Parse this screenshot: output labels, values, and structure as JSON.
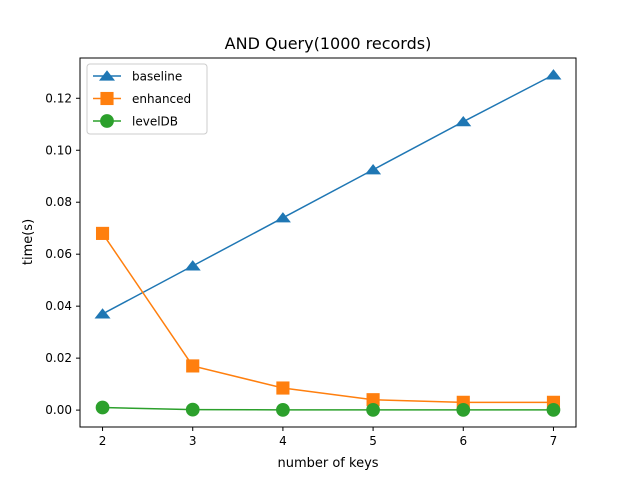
{
  "chart_data": {
    "type": "line",
    "title": "AND Query(1000 records)",
    "xlabel": "number of keys",
    "ylabel": "time(s)",
    "x": [
      2,
      3,
      4,
      5,
      6,
      7
    ],
    "xlim": [
      1.75,
      7.25
    ],
    "ylim": [
      -0.0065,
      0.1355
    ],
    "xticks": [
      2,
      3,
      4,
      5,
      6,
      7
    ],
    "yticks": [
      0.0,
      0.02,
      0.04,
      0.06,
      0.08,
      0.1,
      0.12
    ],
    "ytick_labels": [
      "0.00",
      "0.02",
      "0.04",
      "0.06",
      "0.08",
      "0.10",
      "0.12"
    ],
    "grid": false,
    "legend_position": "top-left",
    "series": [
      {
        "name": "baseline",
        "values": [
          0.037,
          0.0555,
          0.074,
          0.0925,
          0.111,
          0.129
        ],
        "color": "#1f77b4",
        "marker": "triangle"
      },
      {
        "name": "enhanced",
        "values": [
          0.068,
          0.017,
          0.0085,
          0.004,
          0.003,
          0.003
        ],
        "color": "#ff7f0e",
        "marker": "square"
      },
      {
        "name": "levelDB",
        "values": [
          0.001,
          0.0002,
          0.0001,
          0.0001,
          0.0001,
          0.0001
        ],
        "color": "#2ca02c",
        "marker": "circle"
      }
    ]
  }
}
